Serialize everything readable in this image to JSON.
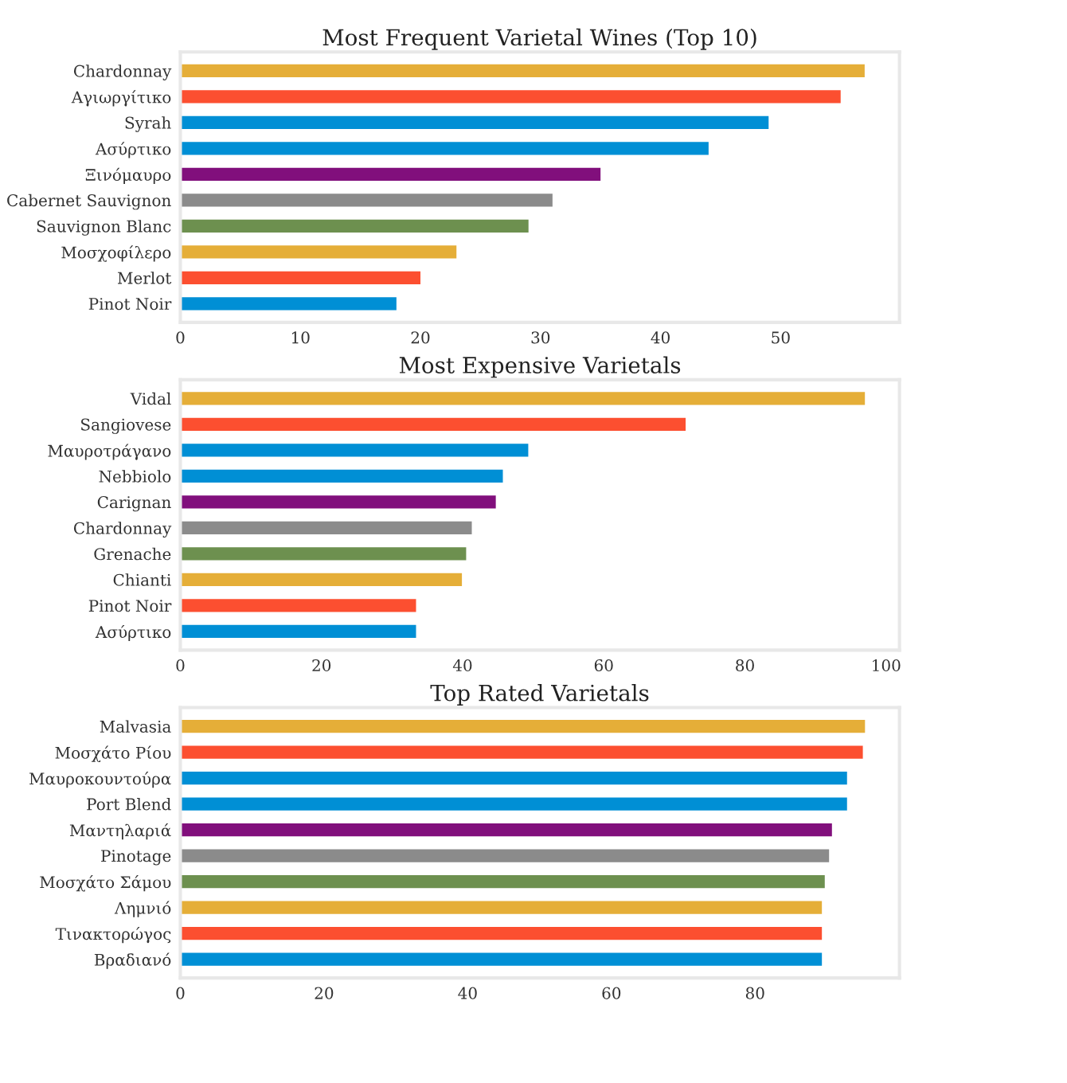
{
  "chart_data": [
    {
      "type": "bar",
      "orientation": "horizontal",
      "title": "Most Frequent Varietal Wines (Top 10)",
      "categories": [
        "Chardonnay",
        "Αγιωργίτικο",
        "Syrah",
        "Ασύρτικο",
        "Ξινόμαυρο",
        "Cabernet Sauvignon",
        "Sauvignon Blanc",
        "Μοσχοφίλερο",
        "Merlot",
        "Pinot Noir"
      ],
      "values": [
        57,
        55,
        49,
        44,
        35,
        31,
        29,
        23,
        20,
        18
      ],
      "colors": [
        "#e5ae38",
        "#fc4f30",
        "#008fd5",
        "#008fd5",
        "#810f7c",
        "#8b8b8b",
        "#6d904f",
        "#e5ae38",
        "#fc4f30",
        "#008fd5"
      ],
      "xlim": [
        0,
        59.9
      ],
      "xticks": [
        0,
        10,
        20,
        30,
        40,
        50
      ]
    },
    {
      "type": "bar",
      "orientation": "horizontal",
      "title": "Most Expensive Varietals",
      "categories": [
        "Vidal",
        "Sangiovese",
        "Μαυροτράγανο",
        "Nebbiolo",
        "Carignan",
        "Chardonnay",
        "Grenache",
        "Chianti",
        "Pinot Noir",
        "Ασύρτικο"
      ],
      "values": [
        97,
        71.6,
        49.3,
        45.7,
        44.7,
        41.3,
        40.5,
        39.9,
        33.4,
        33.4
      ],
      "colors": [
        "#e5ae38",
        "#fc4f30",
        "#008fd5",
        "#008fd5",
        "#810f7c",
        "#8b8b8b",
        "#6d904f",
        "#e5ae38",
        "#fc4f30",
        "#008fd5"
      ],
      "xlim": [
        0,
        101.9
      ],
      "xticks": [
        0,
        20,
        40,
        60,
        80,
        100
      ]
    },
    {
      "type": "bar",
      "orientation": "horizontal",
      "title": "Top Rated Varietals",
      "categories": [
        "Malvasia",
        "Μοσχάτο Ρίου",
        "Μαυροκουντούρα",
        "Port Blend",
        "Μαντηλαριά",
        "Pinotage",
        "Μοσχάτο Σάμου",
        "Λημνιό",
        "Τινακτορώγος",
        "Βραδιανό"
      ],
      "values": [
        95.3,
        95.0,
        92.8,
        92.8,
        90.7,
        90.3,
        89.7,
        89.3,
        89.3,
        89.3
      ],
      "colors": [
        "#e5ae38",
        "#fc4f30",
        "#008fd5",
        "#008fd5",
        "#810f7c",
        "#8b8b8b",
        "#6d904f",
        "#e5ae38",
        "#fc4f30",
        "#008fd5"
      ],
      "xlim": [
        0,
        100.1
      ],
      "xticks": [
        0,
        20,
        40,
        60,
        80
      ]
    }
  ]
}
